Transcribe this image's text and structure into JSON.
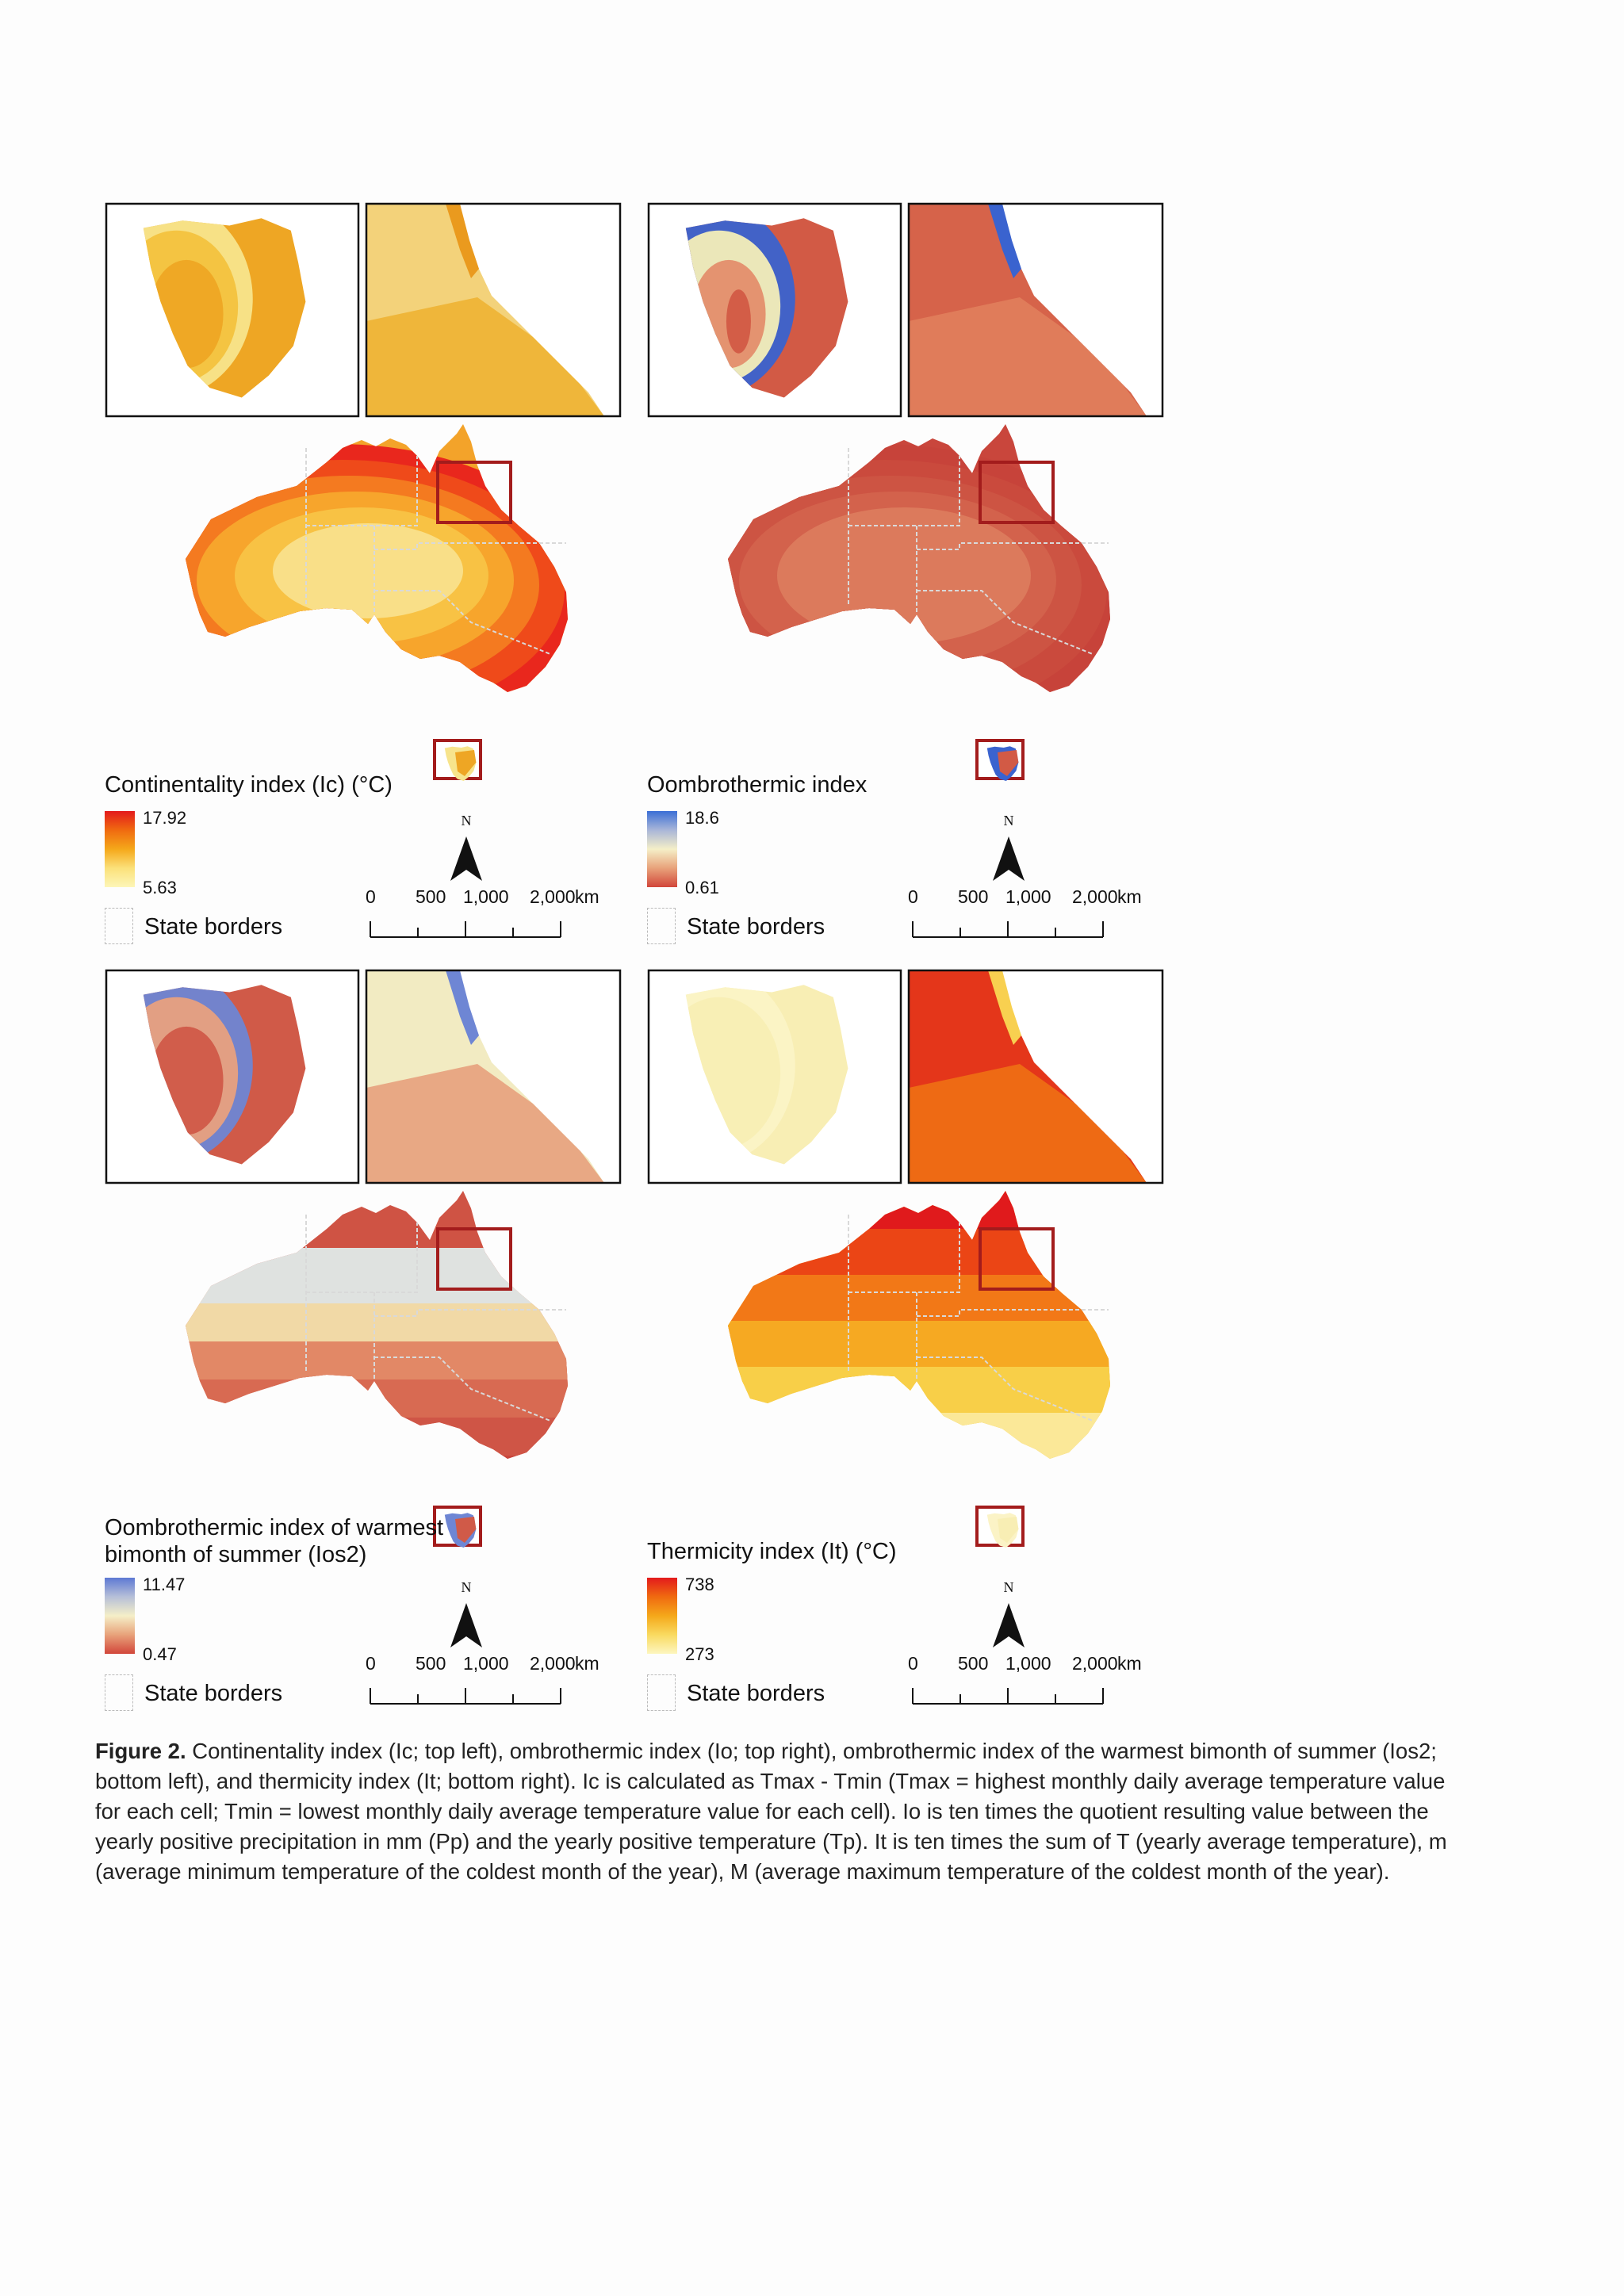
{
  "panels": [
    {
      "id": "ic",
      "legend_title_lines": [
        "Continentality index (Ic) (°C)"
      ],
      "legend_max": "17.92",
      "legend_min": "5.63",
      "ramp_colors": [
        "#e31a1c",
        "#f06a10",
        "#f5a81a",
        "#fbe17a",
        "#fdf6b8"
      ],
      "map_colors": {
        "base": "#f3a32a",
        "bands": [
          "#e9271d",
          "#ef4a1a",
          "#f47a20",
          "#f7a52c",
          "#f8c244",
          "#f9df88"
        ],
        "inset_left": [
          "#f7e48c",
          "#f3c23e",
          "#eea624"
        ],
        "inset_right": [
          "#f3d27a",
          "#efb63a",
          "#ea9a1e"
        ]
      },
      "state_borders_label": "State borders",
      "north_label": "N",
      "scale_labels": [
        "0",
        "500",
        "1,000",
        "2,000",
        "km"
      ]
    },
    {
      "id": "io",
      "legend_title_lines": [
        "Oombrothermic index"
      ],
      "legend_max": "18.6",
      "legend_min": "0.61",
      "ramp_colors": [
        "#3b6fd6",
        "#a9b6d8",
        "#f5efc8",
        "#e8a27a",
        "#d2463a"
      ],
      "map_colors": {
        "base": "#c9463c",
        "bands": [
          "#c7433a",
          "#ca4a3d",
          "#cd5443",
          "#d3624c",
          "#dc7a5c"
        ],
        "inset_left": [
          "#3a63cf",
          "#f4eeb8",
          "#e48e6c",
          "#d25a45"
        ],
        "inset_right": [
          "#d6634a",
          "#e07c5a",
          "#3a63cf"
        ]
      },
      "state_borders_label": "State borders",
      "north_label": "N",
      "scale_labels": [
        "0",
        "500",
        "1,000",
        "2,000",
        "km"
      ]
    },
    {
      "id": "ios2",
      "legend_title_lines": [
        "Oombrothermic index of warmest",
        "bimonth of summer (Ios2)"
      ],
      "legend_max": "11.47",
      "legend_min": "0.47",
      "ramp_colors": [
        "#5d79d4",
        "#b6bfd8",
        "#f5efc8",
        "#e8a27a",
        "#d2463a"
      ],
      "map_colors": {
        "base": "#cf5344",
        "bands": [
          "#c9453b",
          "#cf5546",
          "#d86a52",
          "#e28866",
          "#f1d9a6",
          "#dfe2e0"
        ],
        "inset_left": [
          "#6e86d4",
          "#e8a07e",
          "#d05a48"
        ],
        "inset_right": [
          "#f2ebc2",
          "#e8a884",
          "#6e86d4"
        ]
      },
      "state_borders_label": "State borders",
      "north_label": "N",
      "scale_labels": [
        "0",
        "500",
        "1,000",
        "2,000",
        "km"
      ]
    },
    {
      "id": "it",
      "legend_title_lines": [
        "Thermicity index (It) (°C)"
      ],
      "legend_max": "738",
      "legend_min": "273",
      "ramp_colors": [
        "#e31a1c",
        "#f06a10",
        "#f5a81a",
        "#f9da60",
        "#fdf6c0"
      ],
      "map_colors": {
        "base": "#f4c030",
        "bands": [
          "#e01a1c",
          "#eb4515",
          "#f27817",
          "#f6a922",
          "#f8cf48",
          "#fbe898"
        ],
        "inset_left": [
          "#fbf3c6",
          "#f8eeb4"
        ],
        "inset_right": [
          "#e4361a",
          "#ee6a14",
          "#f8d050"
        ]
      },
      "state_borders_label": "State borders",
      "north_label": "N",
      "scale_labels": [
        "0",
        "500",
        "1,000",
        "2,000",
        "km"
      ]
    }
  ],
  "caption": {
    "label": "Figure 2.",
    "text": " Continentality index (Ic; top left), ombrothermic index (Io; top right), ombrothermic index of the warmest bimonth of summer (Ios2; bottom left), and thermicity index (It; bottom right). Ic is calculated as Tmax - Tmin (Tmax = highest monthly daily average temperature value for each cell; Tmin = lowest monthly daily average temperature value for each cell). Io is ten times the quotient resulting value between the yearly positive precipitation in mm (Pp) and the yearly positive temperature (Tp). It is ten times the sum of T (yearly average temperature), m (average minimum temperature of the coldest month of the year), M (average maximum temperature of the coldest month of the year)."
  },
  "colors": {
    "frame": "#111111",
    "highlight_box": "#a31c1c",
    "state_border_line": "#d9d9d9"
  }
}
